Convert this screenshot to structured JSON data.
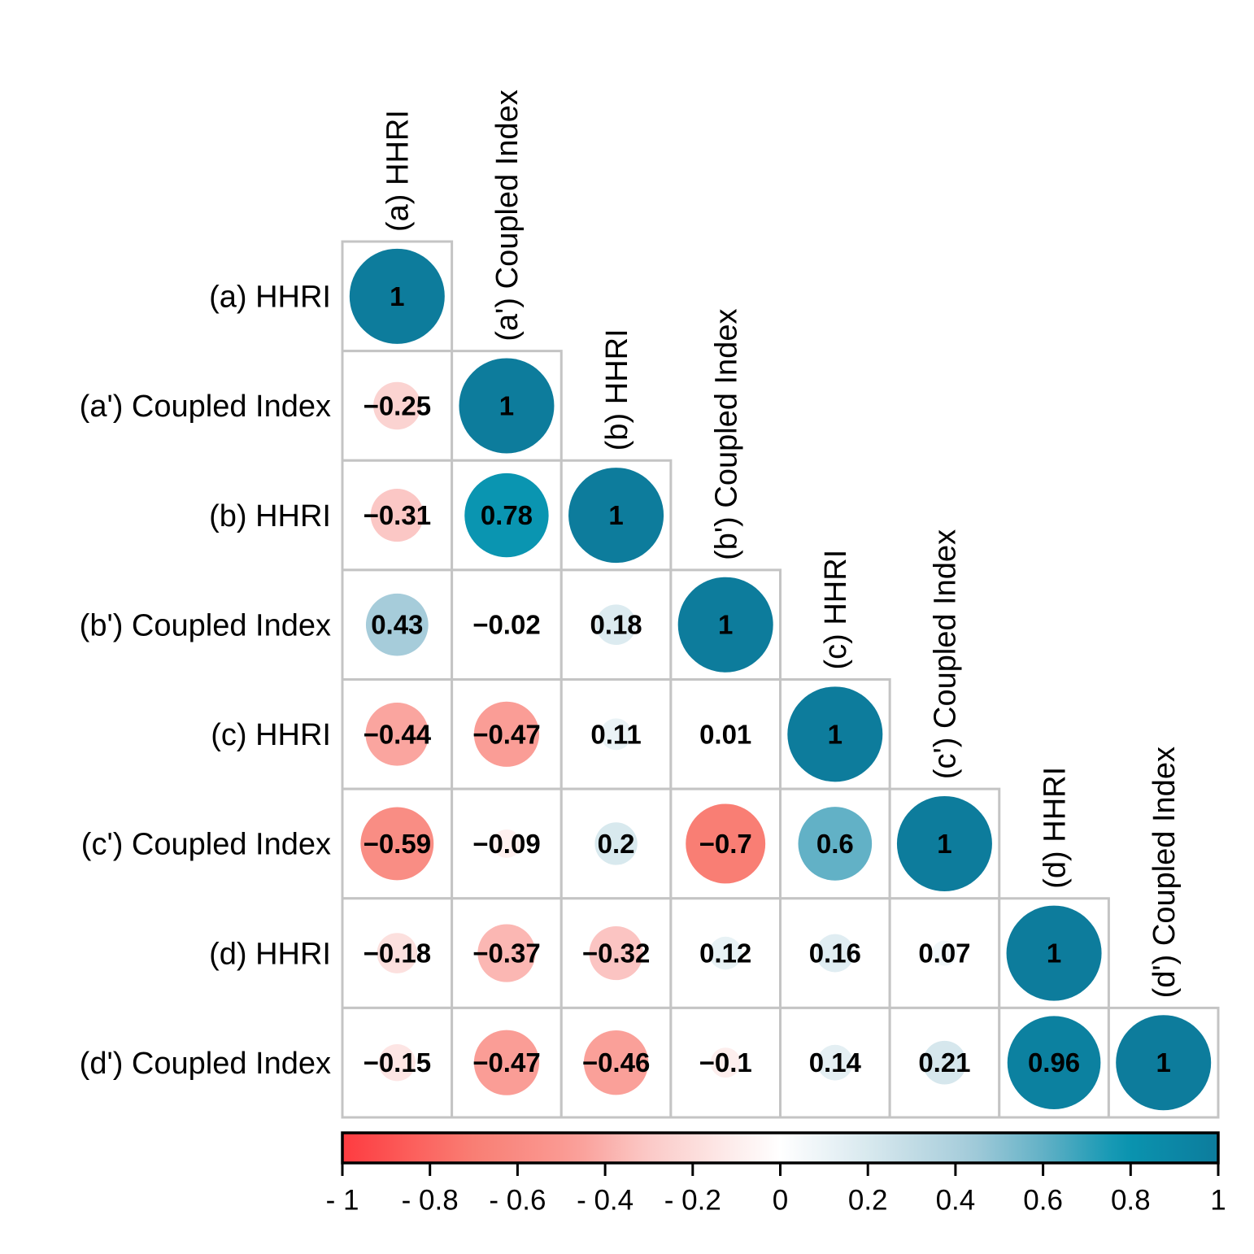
{
  "chart_data": {
    "type": "heatmap",
    "subtype": "lower-triangle-correlation-matrix-circles",
    "title": "",
    "variables": [
      "(a) HHRI",
      "(a') Coupled Index",
      "(b) HHRI",
      "(b') Coupled Index",
      "(c) HHRI",
      "(c') Coupled Index",
      "(d) HHRI",
      "(d') Coupled Index"
    ],
    "matrix": [
      [
        1
      ],
      [
        -0.25,
        1
      ],
      [
        -0.31,
        0.78,
        1
      ],
      [
        0.43,
        -0.02,
        0.18,
        1
      ],
      [
        -0.44,
        -0.47,
        0.11,
        0.01,
        1
      ],
      [
        -0.59,
        -0.09,
        0.2,
        -0.7,
        0.6,
        1
      ],
      [
        -0.18,
        -0.37,
        -0.32,
        0.12,
        0.16,
        0.07,
        1
      ],
      [
        -0.15,
        -0.47,
        -0.46,
        -0.1,
        0.14,
        0.21,
        0.96,
        1
      ]
    ],
    "value_labels": [
      [
        "1"
      ],
      [
        "−0.25",
        "1"
      ],
      [
        "−0.31",
        "0.78",
        "1"
      ],
      [
        "0.43",
        "−0.02",
        "0.18",
        "1"
      ],
      [
        "−0.44",
        "−0.47",
        "0.11",
        "0.01",
        "1"
      ],
      [
        "−0.59",
        "−0.09",
        "0.2",
        "−0.7",
        "0.6",
        "1"
      ],
      [
        "−0.18",
        "−0.37",
        "−0.32",
        "0.12",
        "0.16",
        "0.07",
        "1"
      ],
      [
        "−0.15",
        "−0.47",
        "−0.46",
        "−0.1",
        "0.14",
        "0.21",
        "0.96",
        "1"
      ]
    ],
    "colorbar": {
      "min": -1,
      "max": 1,
      "tick_values": [
        -1,
        -0.8,
        -0.6,
        -0.4,
        -0.2,
        0,
        0.2,
        0.4,
        0.6,
        0.8,
        1
      ],
      "tick_labels": [
        "- 1",
        "- 0.8",
        "- 0.6",
        "- 0.4",
        "- 0.2",
        "0",
        "0.2",
        "0.4",
        "0.6",
        "0.8",
        "1"
      ]
    },
    "palette": {
      "negative_stops": [
        [
          0,
          "#FFFFFF"
        ],
        [
          0.18,
          "#FCE0DE"
        ],
        [
          0.31,
          "#FBC7C5"
        ],
        [
          0.47,
          "#FA9D96"
        ],
        [
          0.7,
          "#F97E74"
        ],
        [
          1,
          "#FE3B40"
        ]
      ],
      "positive_stops": [
        [
          0,
          "#FFFFFF"
        ],
        [
          0.18,
          "#DCEBF0"
        ],
        [
          0.43,
          "#A6CCDA"
        ],
        [
          0.6,
          "#62B1C6"
        ],
        [
          0.78,
          "#0A95B1"
        ],
        [
          1,
          "#0D7C9C"
        ]
      ],
      "grid_line_color": "#C4C4C4",
      "colorbar_border_color": "#000000",
      "text_color": "#000000",
      "background": "#FFFFFF"
    },
    "legend_position": "bottom",
    "grid": true
  }
}
